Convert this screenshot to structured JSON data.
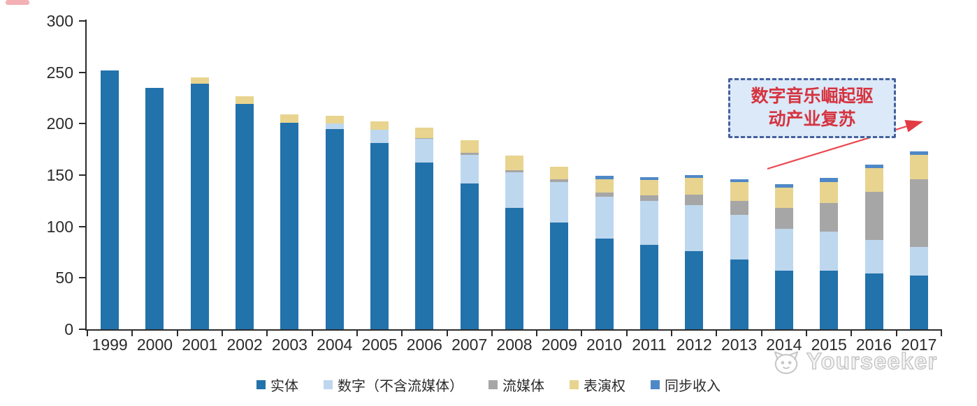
{
  "chart_data": {
    "type": "bar",
    "stacked": true,
    "categories": [
      "1999",
      "2000",
      "2001",
      "2002",
      "2003",
      "2004",
      "2005",
      "2006",
      "2007",
      "2008",
      "2009",
      "2010",
      "2011",
      "2012",
      "2013",
      "2014",
      "2015",
      "2016",
      "2017"
    ],
    "series": [
      {
        "name": "实体",
        "color": "#2272AC",
        "values": [
          252,
          235,
          239,
          219,
          201,
          195,
          181,
          162,
          142,
          118,
          104,
          88,
          82,
          76,
          68,
          57,
          57,
          54,
          52
        ]
      },
      {
        "name": "数字（不含流媒体）",
        "color": "#BDD7EE",
        "values": [
          0,
          0,
          0,
          0,
          0,
          5,
          13,
          23,
          28,
          35,
          39,
          41,
          43,
          45,
          43,
          41,
          38,
          33,
          28
        ]
      },
      {
        "name": "流媒体",
        "color": "#A6A6A6",
        "values": [
          0,
          0,
          0,
          0,
          0,
          0,
          0,
          1,
          2,
          2,
          3,
          4,
          5,
          10,
          14,
          20,
          28,
          47,
          66
        ]
      },
      {
        "name": "表演权",
        "color": "#E8D48F",
        "values": [
          0,
          0,
          6,
          8,
          8,
          8,
          8,
          10,
          12,
          14,
          12,
          13,
          15,
          16,
          18,
          20,
          20,
          23,
          24
        ]
      },
      {
        "name": "同步收入",
        "color": "#4F88C7",
        "values": [
          0,
          0,
          0,
          0,
          0,
          0,
          0,
          0,
          0,
          0,
          0,
          3,
          3,
          3,
          3,
          3,
          4,
          3,
          3
        ]
      }
    ],
    "title": "",
    "xlabel": "",
    "ylabel": "",
    "ylim": [
      0,
      300
    ],
    "yticks": [
      0,
      50,
      100,
      150,
      200,
      250,
      300
    ],
    "grid": false,
    "legend_position": "bottom"
  },
  "annotation": {
    "lines": [
      "数字音乐崛起驱",
      "动产业复苏"
    ],
    "full_text": "数字音乐崛起驱动产业复苏",
    "box_fill": "#DBE9F8",
    "box_border": "#45619E",
    "text_color": "#D6333F",
    "arrow_color": "#EA4750"
  },
  "watermark": {
    "text": "Yourseeker"
  },
  "axis_color": "#2b2b2b"
}
